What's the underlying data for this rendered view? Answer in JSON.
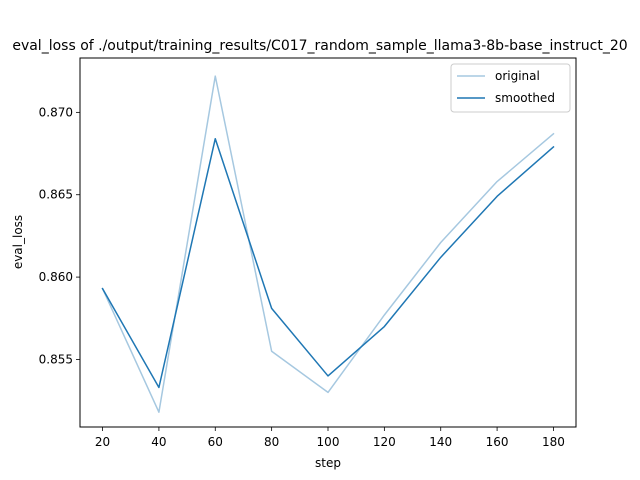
{
  "chart_data": {
    "type": "line",
    "title": "eval_loss of ./output/training_results/C017_random_sample_llama3-8b-base_instruct_20",
    "xlabel": "step",
    "ylabel": "eval_loss",
    "x": [
      20,
      40,
      60,
      80,
      100,
      120,
      140,
      160,
      180
    ],
    "xlim": [
      12,
      188
    ],
    "ylim": [
      0.8509,
      0.8733
    ],
    "xticks": [
      20,
      40,
      60,
      80,
      100,
      120,
      140,
      160,
      180
    ],
    "yticks": [
      0.855,
      0.86,
      0.865,
      0.87
    ],
    "ytick_labels": [
      "0.855",
      "0.860",
      "0.865",
      "0.870"
    ],
    "grid": false,
    "legend_position": "upper right",
    "series": [
      {
        "name": "original",
        "color": "#a6c8e0",
        "values": [
          0.8593,
          0.8518,
          0.8722,
          0.8555,
          0.853,
          0.8577,
          0.8621,
          0.8658,
          0.8687
        ]
      },
      {
        "name": "smoothed",
        "color": "#1f77b4",
        "values": [
          0.8593,
          0.8533,
          0.8684,
          0.8581,
          0.854,
          0.857,
          0.8612,
          0.8649,
          0.8679
        ]
      }
    ]
  }
}
